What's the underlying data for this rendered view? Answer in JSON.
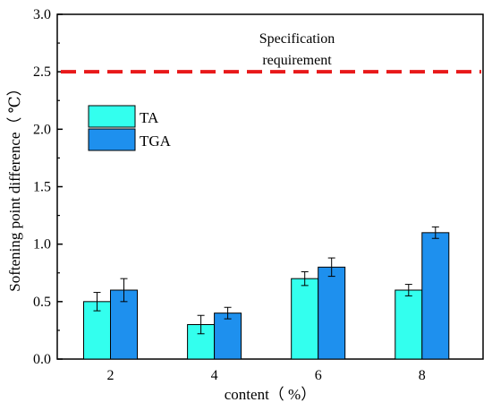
{
  "chart_data": {
    "type": "bar",
    "title": "",
    "xlabel": "content（ %）",
    "ylabel": "Softening point difference（ ℃）",
    "categories": [
      "2",
      "4",
      "6",
      "8"
    ],
    "ylim": [
      0,
      3.0
    ],
    "yticks": [
      "0.0",
      "0.5",
      "1.0",
      "1.5",
      "2.0",
      "2.5",
      "3.0"
    ],
    "grid": false,
    "legend_position": "upper-left",
    "series": [
      {
        "name": "TA",
        "color": "#33ffee",
        "values": [
          0.5,
          0.3,
          0.7,
          0.6
        ],
        "errors": [
          0.08,
          0.08,
          0.06,
          0.05
        ]
      },
      {
        "name": "TGA",
        "color": "#1e90ee",
        "values": [
          0.6,
          0.4,
          0.8,
          1.1
        ],
        "errors": [
          0.1,
          0.05,
          0.08,
          0.05
        ]
      }
    ],
    "reference_line": {
      "value": 2.5,
      "color": "#e8191a",
      "style": "dashed",
      "label_lines": [
        "Specification",
        "requirement"
      ]
    }
  }
}
